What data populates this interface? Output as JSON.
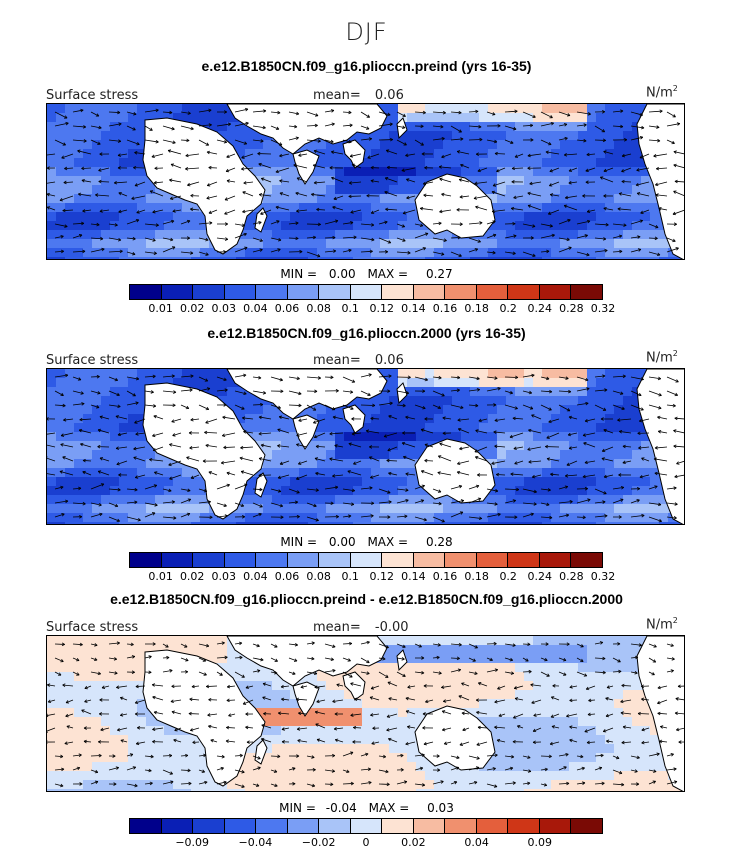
{
  "season": "DJF",
  "colors": {
    "land": "#ffffff",
    "levels": [
      "#00008b",
      "#0a1fb5",
      "#1a3fd0",
      "#2e5ae6",
      "#4d78f0",
      "#7a9ef5",
      "#a9c4f8",
      "#d6e5fb",
      "#fde3d3",
      "#f7bca2",
      "#f0906e",
      "#e45f3c",
      "#cf3617",
      "#a8180a",
      "#7a0a05"
    ]
  },
  "panels": [
    {
      "title": "e.e12.B1850CN.f09_g16.plioccn.preind (yrs 16-35)",
      "left_label": "Surface stress",
      "mean_label": "mean=",
      "mean_value": "0.06",
      "units": "N/m",
      "units_sup": "2",
      "min_label": "MIN =",
      "min_value": "0.00",
      "max_label": "MAX =",
      "max_value": "0.27",
      "colorbar_ticks": [
        "0.01",
        "0.02",
        "0.03",
        "0.04",
        "0.06",
        "0.08",
        "0.1",
        "0.12",
        "0.14",
        "0.16",
        "0.18",
        "0.2",
        "0.24",
        "0.28",
        "0.32"
      ]
    },
    {
      "title": "e.e12.B1850CN.f09_g16.plioccn.2000 (yrs 16-35)",
      "left_label": "Surface stress",
      "mean_label": "mean=",
      "mean_value": "0.06",
      "units": "N/m",
      "units_sup": "2",
      "min_label": "MIN =",
      "min_value": "0.00",
      "max_label": "MAX =",
      "max_value": "0.28",
      "colorbar_ticks": [
        "0.01",
        "0.02",
        "0.03",
        "0.04",
        "0.06",
        "0.08",
        "0.1",
        "0.12",
        "0.14",
        "0.16",
        "0.18",
        "0.2",
        "0.24",
        "0.28",
        "0.32"
      ]
    },
    {
      "title": "e.e12.B1850CN.f09_g16.plioccn.preind - e.e12.B1850CN.f09_g16.plioccn.2000",
      "left_label": "Surface stress",
      "mean_label": "mean=",
      "mean_value": "-0.00",
      "units": "N/m",
      "units_sup": "2",
      "min_label": "MIN =",
      "min_value": "-0.04",
      "max_label": "MAX =",
      "max_value": "0.03",
      "colorbar_ticks": [
        "-0.09",
        "-0.04",
        "-0.02",
        "0",
        "0.02",
        "0.04",
        "0.09"
      ]
    }
  ],
  "chart_data": [
    {
      "type": "heatmap",
      "field": "Surface stress",
      "units": "N/m2",
      "mean": 0.06,
      "min": 0.0,
      "max": 0.27,
      "levels": [
        0.01,
        0.02,
        0.03,
        0.04,
        0.06,
        0.08,
        0.1,
        0.12,
        0.14,
        0.16,
        0.18,
        0.2,
        0.24,
        0.28,
        0.32
      ]
    },
    {
      "type": "heatmap",
      "field": "Surface stress",
      "units": "N/m2",
      "mean": 0.06,
      "min": 0.0,
      "max": 0.28,
      "levels": [
        0.01,
        0.02,
        0.03,
        0.04,
        0.06,
        0.08,
        0.1,
        0.12,
        0.14,
        0.16,
        0.18,
        0.2,
        0.24,
        0.28,
        0.32
      ]
    },
    {
      "type": "heatmap",
      "field": "Surface stress",
      "units": "N/m2",
      "mean": -0.0,
      "min": -0.04,
      "max": 0.03,
      "levels": [
        -0.09,
        -0.04,
        -0.02,
        0,
        0.02,
        0.04,
        0.09
      ]
    }
  ]
}
